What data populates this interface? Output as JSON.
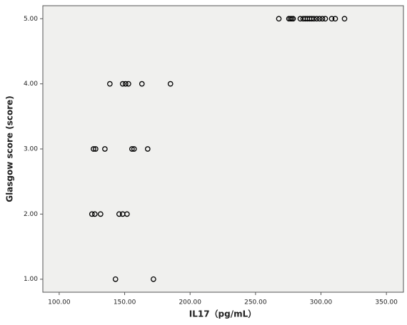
{
  "chart_data": {
    "type": "scatter",
    "xlabel": "IL17（pg/mL）",
    "ylabel": "Glasgow score (score)",
    "x": [
      267.8,
      275.5,
      276.6,
      277.7,
      278.7,
      284.2,
      286.4,
      288.0,
      289.6,
      291.3,
      292.9,
      294.6,
      296.7,
      298.9,
      301.1,
      303.3,
      308.2,
      310.9,
      318.0,
      138.7,
      148.5,
      150.7,
      152.9,
      163.2,
      185.0,
      126.2,
      127.8,
      134.9,
      155.6,
      157.2,
      167.6,
      125.0,
      127.2,
      131.6,
      145.8,
      148.5,
      151.8,
      143.0,
      172.0
    ],
    "values": [
      5,
      5,
      5,
      5,
      5,
      5,
      5,
      5,
      5,
      5,
      5,
      5,
      5,
      5,
      5,
      5,
      5,
      5,
      5,
      4,
      4,
      4,
      4,
      4,
      4,
      3,
      3,
      3,
      3,
      3,
      3,
      2,
      2,
      2,
      2,
      2,
      2,
      1,
      1
    ],
    "color": "#000000",
    "xlim": [
      87.5,
      363
    ],
    "ylim": [
      0.8,
      5.2
    ],
    "xticks": [
      {
        "value": 100,
        "label": "100.00"
      },
      {
        "value": 150,
        "label": "150.00"
      },
      {
        "value": 200,
        "label": "200.00"
      },
      {
        "value": 250,
        "label": "250.00"
      },
      {
        "value": 300,
        "label": "300.00"
      },
      {
        "value": 350,
        "label": "350.00"
      }
    ],
    "yticks": [
      {
        "value": 1,
        "label": "1.00"
      },
      {
        "value": 2,
        "label": "2.00"
      },
      {
        "value": 3,
        "label": "3.00"
      },
      {
        "value": 4,
        "label": "4.00"
      },
      {
        "value": 5,
        "label": "5.00"
      }
    ]
  }
}
